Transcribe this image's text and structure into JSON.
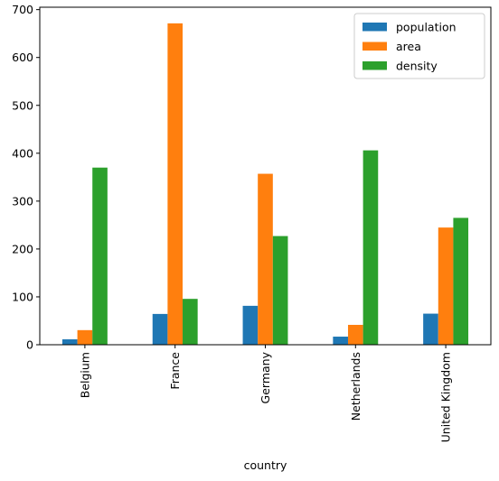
{
  "chart_data": {
    "type": "bar",
    "xlabel": "country",
    "ylabel": "",
    "ylim": [
      0,
      705
    ],
    "yticks": [
      0,
      100,
      200,
      300,
      400,
      500,
      600,
      700
    ],
    "categories": [
      "Belgium",
      "France",
      "Germany",
      "Netherlands",
      "United Kingdom"
    ],
    "legend_position": "top-right",
    "grid": false,
    "series": [
      {
        "name": "population",
        "color": "#1f77b4",
        "values": [
          11.3,
          64.3,
          81.3,
          16.9,
          64.9
        ]
      },
      {
        "name": "area",
        "color": "#ff7f0e",
        "values": [
          30.5,
          671.3,
          357.1,
          41.5,
          244.8
        ]
      },
      {
        "name": "density",
        "color": "#2ca02c",
        "values": [
          370,
          95.8,
          227,
          406,
          265
        ]
      }
    ]
  }
}
